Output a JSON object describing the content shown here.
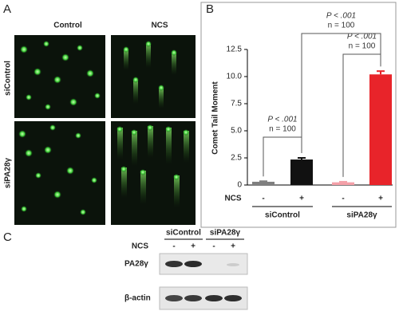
{
  "panel_labels": [
    "A",
    "B",
    "C"
  ],
  "microscopy": {
    "columns": [
      "Control",
      "NCS"
    ],
    "rows": [
      "siControl",
      "siPA28γ"
    ]
  },
  "chart_data": {
    "type": "bar",
    "y_label": "Comet Tail Moment",
    "row_label": "NCS",
    "categories": [
      "-",
      "+",
      "-",
      "+"
    ],
    "groups": [
      "siControl",
      "siPA28γ"
    ],
    "values": [
      0.3,
      2.35,
      0.25,
      10.2
    ],
    "errors": [
      0.05,
      0.15,
      0.05,
      0.3
    ],
    "colors": [
      "#7f7f7f",
      "#111111",
      "#f4a0a8",
      "#e8242a"
    ],
    "ylim": [
      0,
      12.5
    ],
    "yticks": [
      0,
      2.5,
      {
        "value": 5,
        "label": "5.0"
      },
      7.5,
      {
        "value": 10,
        "label": "10.0"
      },
      12.5
    ],
    "annotations": [
      {
        "p": "P < .001",
        "n": "n = 100"
      },
      {
        "p": "P < .001",
        "n": "n = 100"
      },
      {
        "p": "P < .001",
        "n": "n = 100"
      }
    ]
  },
  "blot": {
    "groups": [
      "siControl",
      "siPA28γ"
    ],
    "row_label": "NCS",
    "lanes": [
      "-",
      "+",
      "-",
      "+"
    ],
    "bands": [
      "PA28γ",
      "β-actin"
    ]
  }
}
